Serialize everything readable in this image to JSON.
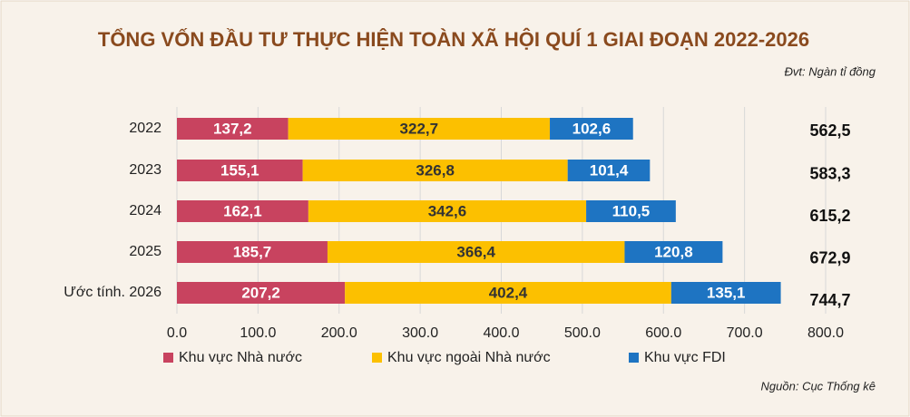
{
  "chart_data": {
    "type": "stacked-bar-horizontal",
    "title": "TỔNG VỐN ĐẦU TƯ THỰC HIỆN TOÀN XÃ HỘI QUÍ 1 GIAI ĐOẠN 2022-2026",
    "unit_note": "Đvt: Ngàn tỉ đồng",
    "source": "Nguồn: Cục Thống kê",
    "categories": [
      "2022",
      "2023",
      "2024",
      "2025",
      "Ước tính. 2026"
    ],
    "series": [
      {
        "name": "Khu vực Nhà nước",
        "color": "#c8435f",
        "values": [
          137.2,
          155.1,
          162.1,
          185.7,
          207.2
        ],
        "value_labels": [
          "137,2",
          "155,1",
          "162,1",
          "185,7",
          "207,2"
        ]
      },
      {
        "name": "Khu vực ngoài Nhà nước",
        "color": "#fcc000",
        "values": [
          322.7,
          326.8,
          342.6,
          366.4,
          402.4
        ],
        "value_labels": [
          "322,7",
          "326,8",
          "342,6",
          "366,4",
          "402,4"
        ]
      },
      {
        "name": "Khu vực FDI",
        "color": "#1e74c2",
        "values": [
          102.6,
          101.4,
          110.5,
          120.8,
          135.1
        ],
        "value_labels": [
          "102,6",
          "101,4",
          "110,5",
          "120,8",
          "135,1"
        ]
      }
    ],
    "totals": {
      "values": [
        562.5,
        583.3,
        615.2,
        672.9,
        744.7
      ],
      "value_labels": [
        "562,5",
        "583,3",
        "615,2",
        "672,9",
        "744,7"
      ]
    },
    "xlim": [
      0,
      800
    ],
    "xticks": [
      {
        "value": 0,
        "label": "0.0"
      },
      {
        "value": 100,
        "label": "100.0"
      },
      {
        "value": 200,
        "label": "200.0"
      },
      {
        "value": 300,
        "label": "300.0"
      },
      {
        "value": 400,
        "label": "400.0"
      },
      {
        "value": 500,
        "label": "500.0"
      },
      {
        "value": 600,
        "label": "600.0"
      },
      {
        "value": 700,
        "label": "700.0"
      },
      {
        "value": 800,
        "label": "800.0"
      }
    ],
    "grid": true
  }
}
